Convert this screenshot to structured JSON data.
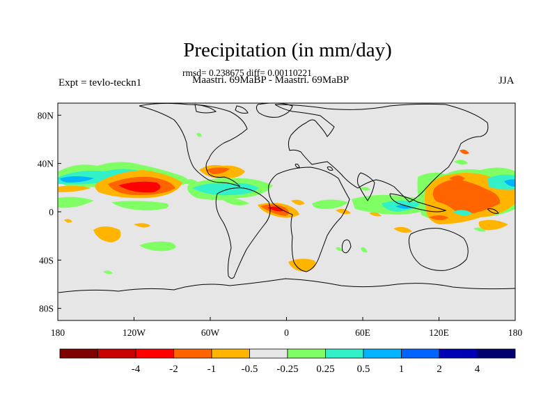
{
  "title": "Precipitation (in mm/day)",
  "stats_line": "rmsd= 0.238675 diff= 0.00110221",
  "subtitle": "Maastri.  69MaBP - Maastri.  69MaBP",
  "left_label": "Expt = tevlo-teckn1",
  "right_label": "JJA",
  "map": {
    "projection": "cylindrical equidistant",
    "lon_range": [
      -180,
      180
    ],
    "lat_range": [
      -90,
      90
    ],
    "lat_ticks": [
      {
        "value": 80,
        "label": "80N"
      },
      {
        "value": 40,
        "label": "40N"
      },
      {
        "value": 0,
        "label": "0"
      },
      {
        "value": -40,
        "label": "40S"
      },
      {
        "value": -80,
        "label": "80S"
      }
    ],
    "lon_ticks": [
      {
        "value": -180,
        "label": "180"
      },
      {
        "value": -120,
        "label": "120W"
      },
      {
        "value": -60,
        "label": "60W"
      },
      {
        "value": 0,
        "label": "0"
      },
      {
        "value": 60,
        "label": "60E"
      },
      {
        "value": 120,
        "label": "120E"
      },
      {
        "value": 180,
        "label": "180"
      }
    ],
    "background_color": "#e6e6e6",
    "anomalies": [
      {
        "lon": -140,
        "lat": 12,
        "level": -1
      },
      {
        "lon": -125,
        "lat": 14,
        "level": -2
      },
      {
        "lon": -100,
        "lat": 27,
        "level": -0.5
      },
      {
        "lon": -160,
        "lat": 18,
        "level": 0.5
      },
      {
        "lon": -170,
        "lat": 20,
        "level": 1
      },
      {
        "lon": -165,
        "lat": 4,
        "level": 0.25
      },
      {
        "lon": -40,
        "lat": 12,
        "level": 1
      },
      {
        "lon": -52,
        "lat": 25,
        "level": -0.5
      },
      {
        "lon": 0,
        "lat": 2,
        "level": -1
      },
      {
        "lon": 0,
        "lat": -40,
        "level": -0.5
      },
      {
        "lon": 45,
        "lat": 5,
        "level": 0.25
      },
      {
        "lon": 70,
        "lat": 0,
        "level": 1
      },
      {
        "lon": 140,
        "lat": 5,
        "level": -1
      },
      {
        "lon": 165,
        "lat": 18,
        "level": 0.5
      },
      {
        "lon": 128,
        "lat": 10,
        "level": -0.5
      },
      {
        "lon": -95,
        "lat": -20,
        "level": -0.5
      },
      {
        "lon": -135,
        "lat": -27,
        "level": -0.25
      },
      {
        "lon": -45,
        "lat": -8,
        "level": 0.5
      }
    ]
  },
  "colorbar": {
    "colors": [
      "#800000",
      "#c80000",
      "#ff0000",
      "#ff6400",
      "#ffb400",
      "#e6e6e6",
      "#80ff64",
      "#32f0c8",
      "#00b4ff",
      "#0064ff",
      "#0000b4",
      "#00006e"
    ],
    "labels": [
      "-4",
      "-2",
      "-1",
      "-0.5",
      "-0.25",
      "0.25",
      "0.5",
      "1",
      "2",
      "4"
    ]
  }
}
